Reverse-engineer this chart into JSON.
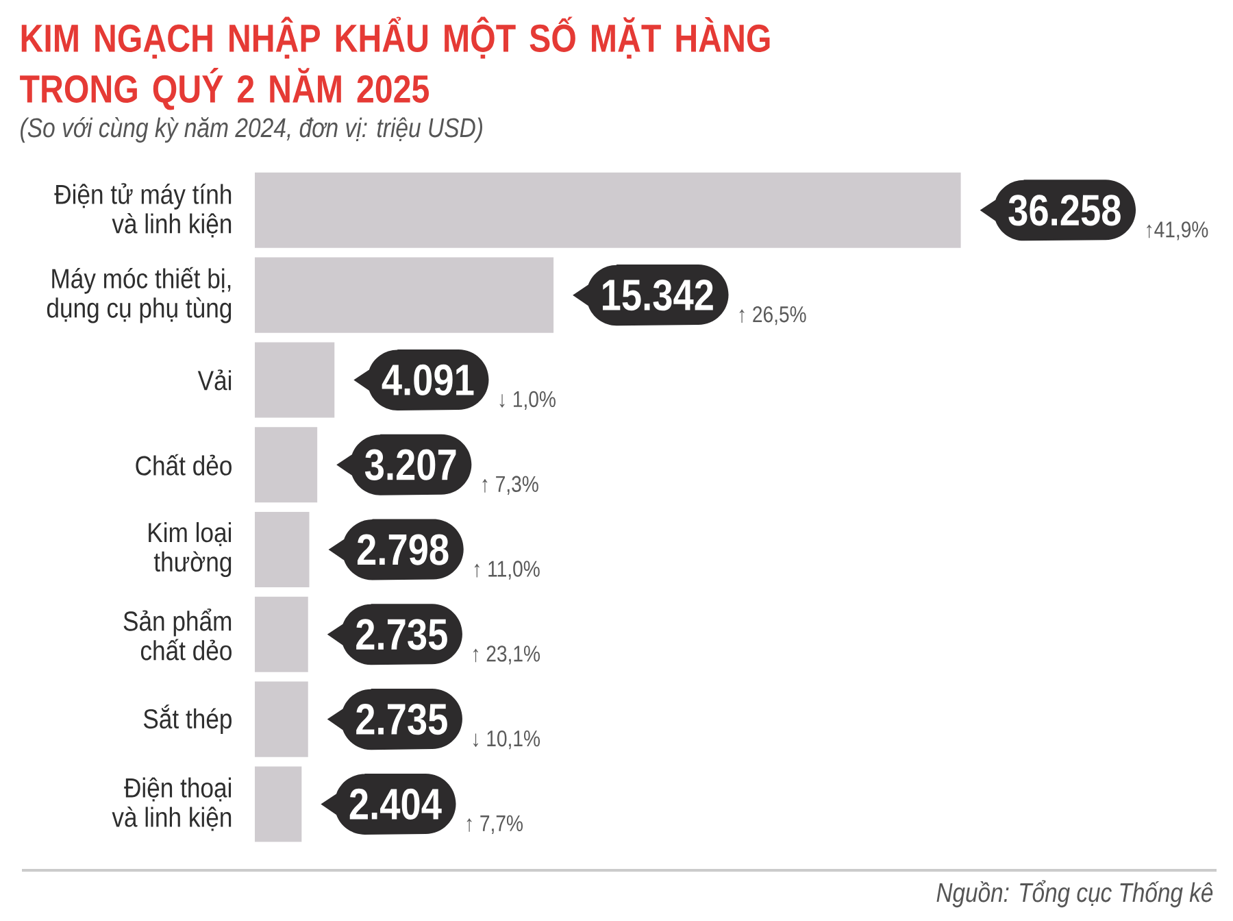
{
  "chart_data": {
    "type": "bar",
    "orientation": "horizontal",
    "title": "KIM NGẠCH NHẬP KHẨU MỘT SỐ MẶT HÀNG TRONG QUÝ 2 NĂM 2025",
    "subtitle": "(So với cùng kỳ năm 2024, đơn vị: triệu USD)",
    "categories": [
      "Điện tử máy tính\nvà linh kiện",
      "Máy móc thiết bị,\ndụng cụ phụ tùng",
      "Vải",
      "Chất dẻo",
      "Kim loại\nthường",
      "Sản phẩm\nchất dẻo",
      "Sắt thép",
      "Điện thoại\nvà linh kiện"
    ],
    "values": [
      36258,
      15342,
      4091,
      3207,
      2798,
      2735,
      2735,
      2404
    ],
    "value_labels": [
      "36.258",
      "15.342",
      "4.091",
      "3.207",
      "2.798",
      "2.735",
      "2.735",
      "2.404"
    ],
    "color": "#cfcbcf",
    "tick_labels": "y",
    "annotations": [
      "↑41,9%",
      "↑ 26,5%",
      "↓ 1,0%",
      "↑ 7,3%",
      "↑ 11,0%",
      "↑ 23,1%",
      "↓ 10,1%",
      "↑ 7,7%",
      "Nguồn: Tổng cục Thống kê"
    ]
  }
}
